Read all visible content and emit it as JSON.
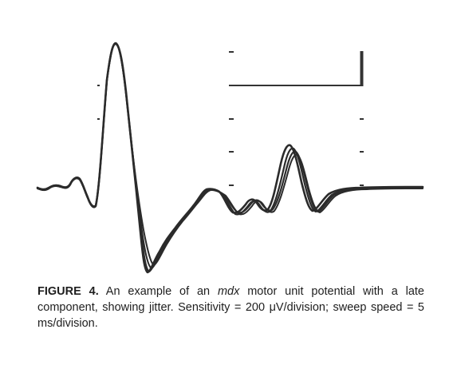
{
  "figure": {
    "trace_color": "#2b2b2b",
    "tick_color": "#333333",
    "scale_bar_color": "#333333"
  },
  "caption": {
    "label": "FIGURE 4.",
    "text_before_italic": " An example of an ",
    "italic": "mdx",
    "text_after_italic": " motor unit potential with a late component, showing jitter. Sensitivity = 200 μV/division; sweep speed = 5 ms/division."
  }
}
